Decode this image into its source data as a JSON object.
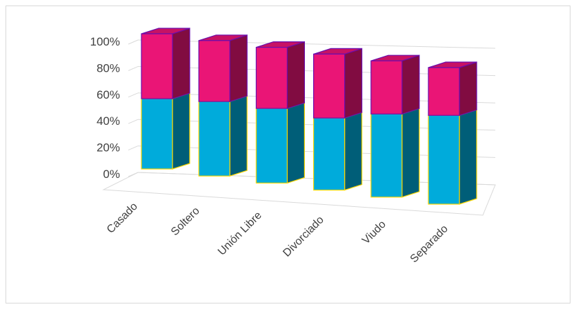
{
  "chart_data": {
    "type": "bar",
    "stacked": true,
    "percent": true,
    "style": "3d-column",
    "title": "",
    "xlabel": "",
    "ylabel": "",
    "ylim": [
      0,
      100
    ],
    "yticks": [
      "0%",
      "20%",
      "40%",
      "60%",
      "80%",
      "100%"
    ],
    "grid": true,
    "legend": "none",
    "categories": [
      "Casado",
      "Soltero",
      "Unión Libre",
      "Divorciado",
      "Viudo",
      "Separado"
    ],
    "series": [
      {
        "values": [
          52,
          55,
          55,
          53,
          61,
          65
        ],
        "color": "#00ABDB"
      },
      {
        "values": [
          48,
          45,
          45,
          47,
          39,
          35
        ],
        "color": "#EA1576"
      }
    ],
    "colors": {
      "outline_lower": "#FFD700",
      "outline_upper": "#6A0DAD",
      "grid": "#d9d9d9",
      "text": "#404040"
    }
  }
}
